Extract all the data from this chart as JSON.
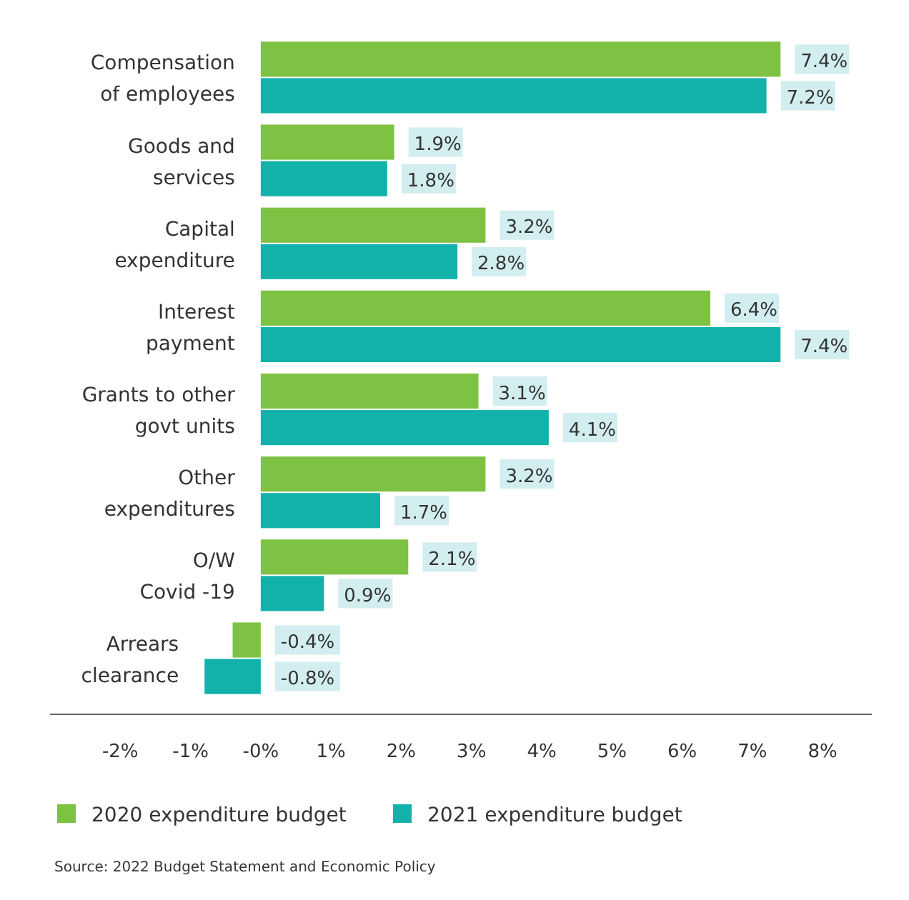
{
  "chart_data": {
    "type": "bar",
    "orientation": "horizontal",
    "categories": [
      "Compensation\nof employees",
      "Goods and\nservices",
      "Capital\nexpenditure",
      "Interest\npayment",
      "Grants to other\ngovt units",
      "Other\nexpenditures",
      "O/W\nCovid -19",
      "Arrears\nclearance"
    ],
    "series": [
      {
        "name": "2020 expenditure budget",
        "color": "#7dc242",
        "values": [
          7.4,
          1.9,
          3.2,
          6.4,
          3.1,
          3.2,
          2.1,
          -0.4
        ],
        "value_labels": [
          "7.4%",
          "1.9%",
          "3.2%",
          "6.4%",
          "3.1%",
          "3.2%",
          "2.1%",
          "-0.4%"
        ]
      },
      {
        "name": "2021 expenditure budget",
        "color": "#12b2aa",
        "values": [
          7.2,
          1.8,
          2.8,
          7.4,
          4.1,
          1.7,
          0.9,
          -0.8
        ],
        "value_labels": [
          "7.2%",
          "1.8%",
          "2.8%",
          "7.4%",
          "4.1%",
          "1.7%",
          "0.9%",
          "-0.8%"
        ]
      }
    ],
    "xlim": [
      -3,
      8.7
    ],
    "xticks": [
      {
        "value": -2,
        "label": "-2%"
      },
      {
        "value": -1,
        "label": "-1%"
      },
      {
        "value": 0,
        "label": "-0%"
      },
      {
        "value": 1,
        "label": "1%"
      },
      {
        "value": 2,
        "label": "2%"
      },
      {
        "value": 3,
        "label": "3%"
      },
      {
        "value": 4,
        "label": "4%"
      },
      {
        "value": 5,
        "label": "5%"
      },
      {
        "value": 6,
        "label": "6%"
      },
      {
        "value": 7,
        "label": "7%"
      },
      {
        "value": 8,
        "label": "8%"
      }
    ],
    "grid": false,
    "legend": "bottom",
    "annotations": [
      "Source: 2022 Budget Statement and Economic Policy"
    ]
  }
}
